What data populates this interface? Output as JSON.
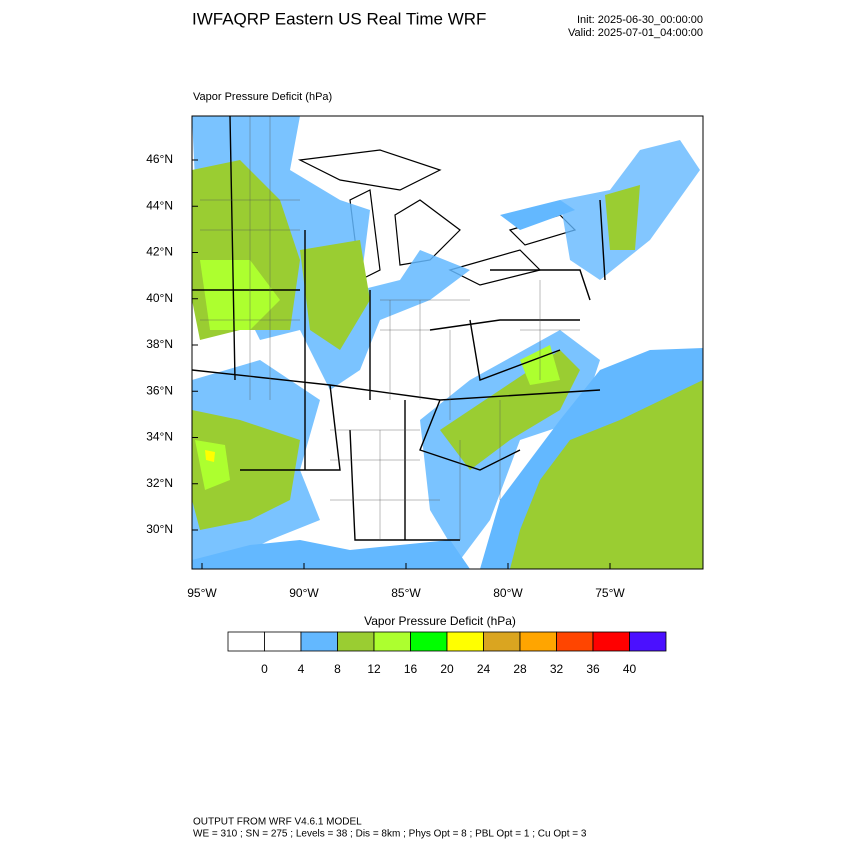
{
  "header": {
    "title": "IWFAQRP Eastern US Real Time WRF",
    "init": "Init: 2025-06-30_00:00:00",
    "valid": "Valid: 2025-07-01_04:00:00"
  },
  "map": {
    "subtitle": "Vapor Pressure Deficit   (hPa)",
    "lat_labels": [
      "46°N",
      "44°N",
      "42°N",
      "40°N",
      "38°N",
      "36°N",
      "34°N",
      "32°N",
      "30°N"
    ],
    "lon_labels": [
      "95°W",
      "90°W",
      "85°W",
      "80°W",
      "75°W"
    ]
  },
  "colorbar": {
    "title": "Vapor Pressure Deficit   (hPa)",
    "labels": [
      0,
      4,
      8,
      12,
      16,
      20,
      24,
      28,
      32,
      36,
      40
    ],
    "colors": [
      "#ffffff",
      "#ffffff",
      "#63b8ff",
      "#9acd32",
      "#adff2f",
      "#00ff00",
      "#ffff00",
      "#daa520",
      "#ffa500",
      "#ff4500",
      "#ff0000",
      "#4b10ff"
    ]
  },
  "footer": {
    "line1": "OUTPUT FROM WRF V4.6.1 MODEL",
    "line2": "WE = 310 ; SN = 275 ; Levels = 38 ; Dis = 8km ; Phys Opt = 8 ; PBL Opt = 1 ; Cu Opt = 3"
  }
}
